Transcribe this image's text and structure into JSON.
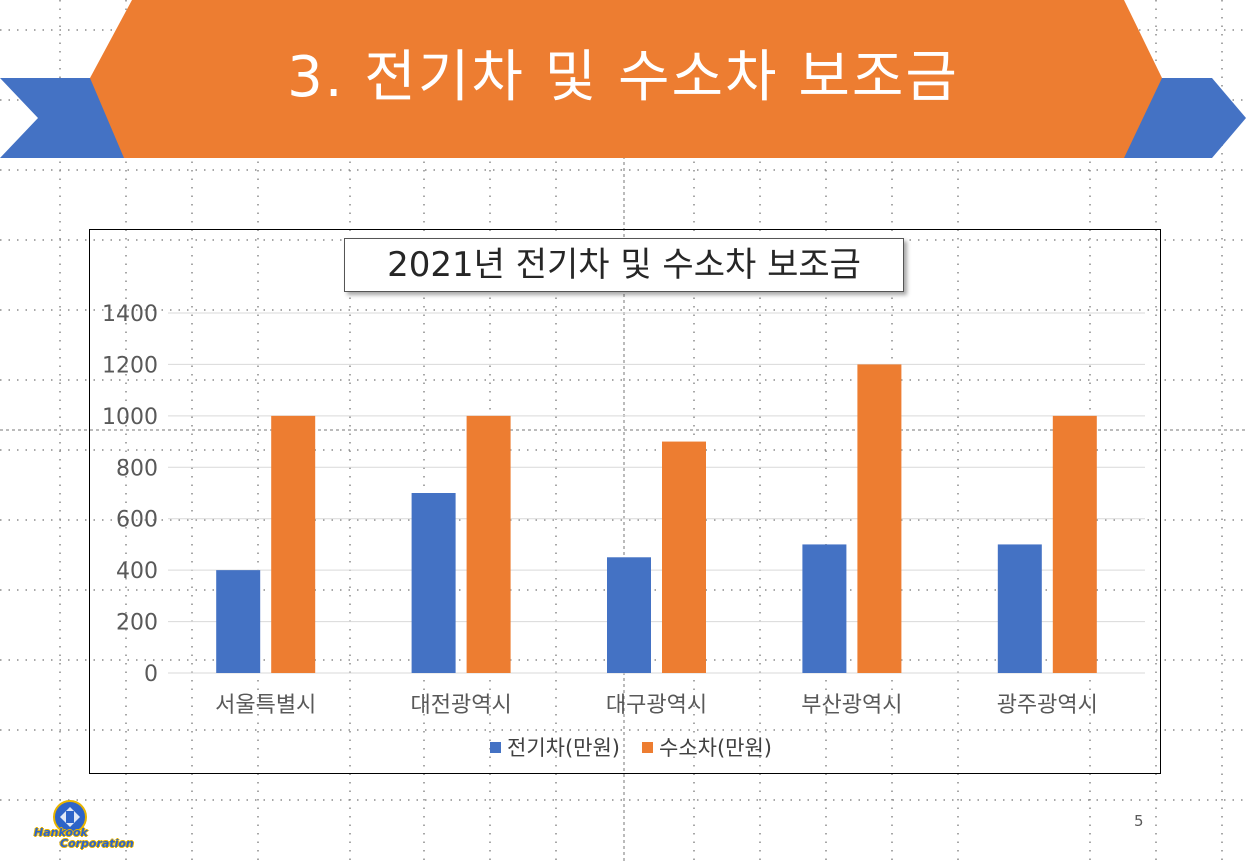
{
  "slide": {
    "title": "3. 전기차 및 수소차 보조금",
    "page_number": "5",
    "logo": {
      "line1": "Hankook",
      "line2": "Corporation"
    }
  },
  "colors": {
    "banner_orange": "#ed7d31",
    "banner_blue": "#4472c4",
    "electric": "#4472c4",
    "hydrogen": "#ed7d31",
    "gridline": "#d9d9d9",
    "axis_text": "#595959"
  },
  "chart_data": {
    "type": "bar",
    "title": "2021년 전기차 및 수소차 보조금",
    "categories": [
      "서울특별시",
      "대전광역시",
      "대구광역시",
      "부산광역시",
      "광주광역시"
    ],
    "series": [
      {
        "name": "전기차(만원)",
        "values": [
          400,
          700,
          450,
          500,
          500
        ]
      },
      {
        "name": "수소차(만원)",
        "values": [
          1000,
          1000,
          900,
          1200,
          1000
        ]
      }
    ],
    "ylim": [
      0,
      1400
    ],
    "yticks": [
      0,
      200,
      400,
      600,
      800,
      1000,
      1200,
      1400
    ],
    "grid": true,
    "legend_position": "bottom"
  }
}
